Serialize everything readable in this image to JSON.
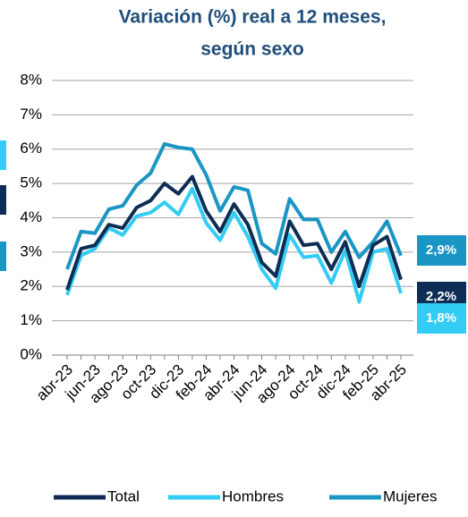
{
  "chart_data": {
    "type": "line",
    "title": "Variación (%) real a 12 meses,",
    "subtitle": "según sexo",
    "categories": [
      "abr-23",
      null,
      "jun-23",
      null,
      "ago-23",
      null,
      "oct-23",
      null,
      "dic-23",
      null,
      "feb-24",
      null,
      "abr-24",
      null,
      "jun-24",
      null,
      "ago-24",
      null,
      "oct-24",
      null,
      "dic-24",
      null,
      "feb-25",
      null,
      "abr-25"
    ],
    "series": [
      {
        "name": "Total",
        "color": "#0d2d54",
        "values": [
          1.9,
          3.1,
          3.2,
          3.8,
          3.7,
          4.3,
          4.5,
          5.0,
          4.7,
          5.2,
          4.2,
          3.6,
          4.4,
          3.8,
          2.7,
          2.3,
          3.9,
          3.2,
          3.25,
          2.5,
          3.3,
          2.0,
          3.2,
          3.45,
          2.2
        ],
        "value_labels": [
          null,
          null,
          null,
          null,
          null,
          null,
          null,
          null,
          null,
          null,
          null,
          null,
          null,
          null,
          null,
          null,
          null,
          null,
          null,
          null,
          null,
          null,
          null,
          null,
          "2,2%"
        ]
      },
      {
        "name": "Hombres",
        "color": "#33ccf5",
        "values": [
          1.75,
          2.9,
          3.1,
          3.7,
          3.5,
          4.05,
          4.15,
          4.45,
          4.1,
          4.85,
          3.85,
          3.35,
          4.15,
          3.45,
          2.5,
          1.95,
          3.5,
          2.85,
          2.9,
          2.1,
          3.05,
          1.55,
          3.0,
          3.1,
          1.8
        ],
        "value_labels": [
          null,
          null,
          null,
          null,
          null,
          null,
          null,
          null,
          null,
          null,
          null,
          null,
          null,
          null,
          null,
          null,
          null,
          null,
          null,
          null,
          null,
          null,
          null,
          null,
          "1,8%"
        ]
      },
      {
        "name": "Mujeres",
        "color": "#1a96c4",
        "values": [
          2.5,
          3.6,
          3.55,
          4.25,
          4.35,
          4.95,
          5.3,
          6.15,
          6.05,
          6.0,
          5.25,
          4.2,
          4.9,
          4.8,
          3.25,
          2.95,
          4.55,
          3.95,
          3.95,
          3.0,
          3.6,
          2.85,
          3.3,
          3.9,
          2.9
        ],
        "value_labels": [
          null,
          null,
          null,
          null,
          null,
          null,
          null,
          null,
          null,
          null,
          null,
          null,
          null,
          null,
          null,
          null,
          null,
          null,
          null,
          null,
          null,
          null,
          null,
          null,
          "2,9%"
        ]
      }
    ],
    "ylim": [
      0,
      8
    ],
    "yticks": [
      {
        "value": 0,
        "label": "0%"
      },
      {
        "value": 1,
        "label": "1%"
      },
      {
        "value": 2,
        "label": "2%"
      },
      {
        "value": 3,
        "label": "3%"
      },
      {
        "value": 4,
        "label": "4%"
      },
      {
        "value": 5,
        "label": "5%"
      },
      {
        "value": 6,
        "label": "6%"
      },
      {
        "value": 7,
        "label": "7%"
      },
      {
        "value": 8,
        "label": "8%"
      }
    ],
    "grid": true,
    "legend": "bottom"
  }
}
